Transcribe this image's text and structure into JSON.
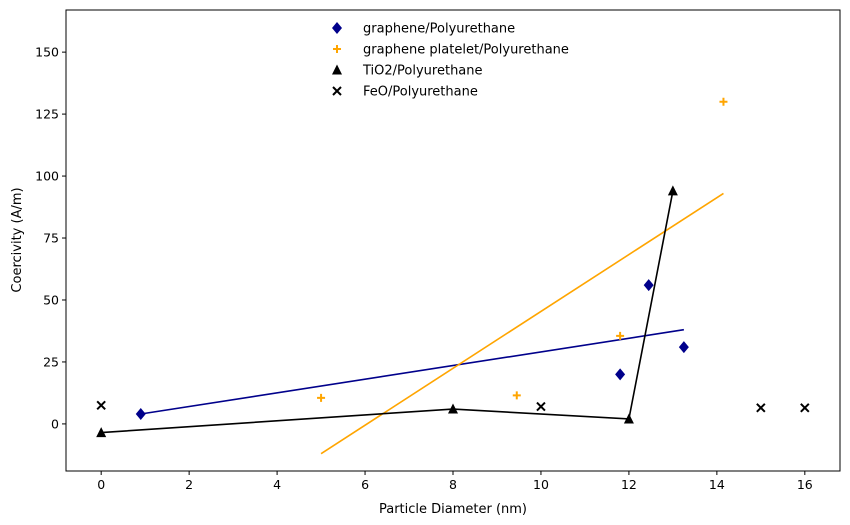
{
  "chart_data": {
    "type": "scatter",
    "title": "",
    "xlabel": "Particle Diameter (nm)",
    "ylabel": "Coercivity (A/m)",
    "xlim": [
      -0.8,
      16.8
    ],
    "ylim": [
      -19,
      167
    ],
    "xticks": [
      0,
      2,
      4,
      6,
      8,
      10,
      12,
      14,
      16
    ],
    "yticks": [
      0,
      25,
      50,
      75,
      100,
      125,
      150
    ],
    "grid": false,
    "legend_position": "top-center",
    "series": [
      {
        "name": "graphene/Polyurethane",
        "marker": "diamond",
        "color": "#00008b",
        "points": [
          [
            0.9,
            4
          ],
          [
            11.8,
            20
          ],
          [
            12.45,
            56
          ],
          [
            13.25,
            31
          ]
        ],
        "line": [
          [
            0.9,
            4
          ],
          [
            13.25,
            38
          ]
        ]
      },
      {
        "name": "graphene platelet/Polyurethane",
        "marker": "plus",
        "color": "#ffa500",
        "points": [
          [
            5.0,
            10.5
          ],
          [
            9.45,
            11.5
          ],
          [
            11.8,
            35.5
          ],
          [
            14.15,
            130
          ]
        ],
        "line": [
          [
            5.0,
            -12
          ],
          [
            14.15,
            93
          ]
        ]
      },
      {
        "name": "TiO2/Polyurethane",
        "marker": "triangle",
        "color": "#000000",
        "points": [
          [
            0,
            -3.5
          ],
          [
            8,
            6
          ],
          [
            12,
            2
          ],
          [
            13,
            94
          ]
        ],
        "line": [
          [
            0,
            -3.5
          ],
          [
            8,
            6
          ],
          [
            12,
            2
          ],
          [
            13,
            94
          ]
        ]
      },
      {
        "name": "FeO/Polyurethane",
        "marker": "x",
        "color": "#000000",
        "points": [
          [
            0,
            7.5
          ],
          [
            10,
            7
          ],
          [
            15,
            6.5
          ],
          [
            16,
            6.5
          ]
        ],
        "line": []
      }
    ]
  }
}
